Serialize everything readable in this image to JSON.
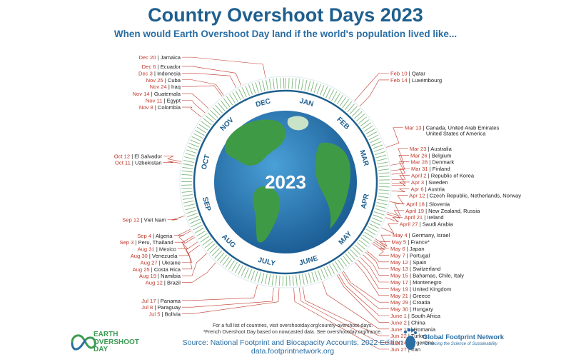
{
  "header": {
    "title": "Country Overshoot Days 2023",
    "subtitle": "When would Earth Overshoot Day land if the world's population lived like..."
  },
  "center_year": "2023",
  "months": [
    "JAN",
    "FEB",
    "MAR",
    "APR",
    "MAY",
    "JUNE",
    "JULY",
    "AUG",
    "SEP",
    "OCT",
    "NOV",
    "DEC"
  ],
  "entries": [
    {
      "date": "Feb 10",
      "countries": "Qatar",
      "doy": 41
    },
    {
      "date": "Feb 14",
      "countries": "Luxembourg",
      "doy": 45
    },
    {
      "date": "Mar 13",
      "countries": "Canada, United Arab Emirates",
      "countries2": "United States of America",
      "doy": 72
    },
    {
      "date": "Mar 23",
      "countries": "Australia",
      "doy": 82
    },
    {
      "date": "Mar 26",
      "countries": "Belgium",
      "doy": 85
    },
    {
      "date": "Mar 28",
      "countries": "Denmark",
      "doy": 87
    },
    {
      "date": "Mar 31",
      "countries": "Finland",
      "doy": 90
    },
    {
      "date": "April 2",
      "countries": "Republic of Korea",
      "doy": 92
    },
    {
      "date": "Apr 3",
      "countries": "Sweden",
      "doy": 93
    },
    {
      "date": "Apr 6",
      "countries": "Austria",
      "doy": 96
    },
    {
      "date": "Apr 12",
      "countries": "Czech Republic, Netherlands, Norway",
      "doy": 102
    },
    {
      "date": "April 18",
      "countries": "Slovenia",
      "doy": 108
    },
    {
      "date": "April 19",
      "countries": "New Zealand, Russia",
      "doy": 109
    },
    {
      "date": "April 21",
      "countries": "Ireland",
      "doy": 111
    },
    {
      "date": "April 27",
      "countries": "Saudi Arabia",
      "doy": 117
    },
    {
      "date": "May 4",
      "countries": "Germany, Israel",
      "doy": 124
    },
    {
      "date": "May 5",
      "countries": "France*",
      "doy": 125
    },
    {
      "date": "May 6",
      "countries": "Japan",
      "doy": 126
    },
    {
      "date": "May 7",
      "countries": "Portugal",
      "doy": 127
    },
    {
      "date": "May 12",
      "countries": "Spain",
      "doy": 132
    },
    {
      "date": "May 13",
      "countries": "Switzerland",
      "doy": 133
    },
    {
      "date": "May 15",
      "countries": "Bahamas, Chile, Italy",
      "doy": 135
    },
    {
      "date": "May 17",
      "countries": "Montenegro",
      "doy": 137
    },
    {
      "date": "May 19",
      "countries": "United Kingdom",
      "doy": 139
    },
    {
      "date": "May 21",
      "countries": "Greece",
      "doy": 141
    },
    {
      "date": "May 29",
      "countries": "Croatia",
      "doy": 149
    },
    {
      "date": "May 30",
      "countries": "Hungary",
      "doy": 150
    },
    {
      "date": "June 1",
      "countries": "South Africa",
      "doy": 152
    },
    {
      "date": "June 2",
      "countries": "China",
      "doy": 153
    },
    {
      "date": "June 11",
      "countries": "Romania",
      "doy": 162
    },
    {
      "date": "Jun 22",
      "countries": "Turkey",
      "doy": 173
    },
    {
      "date": "Jun 24",
      "countries": "Argentina",
      "doy": 175
    },
    {
      "date": "Jun 27",
      "countries": "Iran",
      "doy": 178
    },
    {
      "date": "Jul 5",
      "countries": "Bolivia",
      "doy": 186
    },
    {
      "date": "Jul 8",
      "countries": "Paraguay",
      "doy": 189
    },
    {
      "date": "Jul 17",
      "countries": "Panama",
      "doy": 198
    },
    {
      "date": "Aug 12",
      "countries": "Brazil",
      "doy": 224
    },
    {
      "date": "Aug 19",
      "countries": "Namibia",
      "doy": 231
    },
    {
      "date": "Aug 25",
      "countries": "Costa Rica",
      "doy": 237
    },
    {
      "date": "Aug 27",
      "countries": "Ukraine",
      "doy": 239
    },
    {
      "date": "Aug 30",
      "countries": "Venezuela",
      "doy": 242
    },
    {
      "date": "Aug 31",
      "countries": "Mexico",
      "doy": 243
    },
    {
      "date": "Sep 3",
      "countries": "Peru, Thailand",
      "doy": 246
    },
    {
      "date": "Sep 4",
      "countries": "Algeria",
      "doy": 247
    },
    {
      "date": "Sep 12",
      "countries": "Viet Nam",
      "doy": 255
    },
    {
      "date": "Oct 11",
      "countries": "Uzbekistan",
      "doy": 284
    },
    {
      "date": "Oct 12",
      "countries": "El Salvador",
      "doy": 285
    },
    {
      "date": "Nov 8",
      "countries": "Colombia",
      "doy": 312
    },
    {
      "date": "Nov 11",
      "countries": "Egypt",
      "doy": 315
    },
    {
      "date": "Nov 14",
      "countries": "Guatemala",
      "doy": 318
    },
    {
      "date": "Nov 24",
      "countries": "Iraq",
      "doy": 328
    },
    {
      "date": "Nov 25",
      "countries": "Cuba",
      "doy": 329
    },
    {
      "date": "Dec 3",
      "countries": "Indonesia",
      "doy": 337
    },
    {
      "date": "Dec 6",
      "countries": "Ecuador",
      "doy": 340
    },
    {
      "date": "Dec 20",
      "countries": "Jamaica",
      "doy": 354
    }
  ],
  "footer": {
    "fine_print_1": "For a full list of countries, visit overshootday.org/country-overshoot-days.",
    "fine_print_2": "*French Overshoot Day based on nowcasted data. See overshootday.org/france.",
    "source": "Source: National Footprint and Biocapacity Accounts, 2022 Edition",
    "source_url": "data.footprintnetwork.org",
    "eod_logo_text": "EARTH OVERSHOOT DAY",
    "gfn_name": "Global Footprint Network",
    "gfn_tagline": "Advancing the Science of Sustainability"
  },
  "colors": {
    "title_blue": "#1f5f8e",
    "date_red": "#c0392b",
    "tick_green": "#5aa35a",
    "ocean_blue": "#2d7fb8",
    "land_green": "#3f9a45"
  }
}
